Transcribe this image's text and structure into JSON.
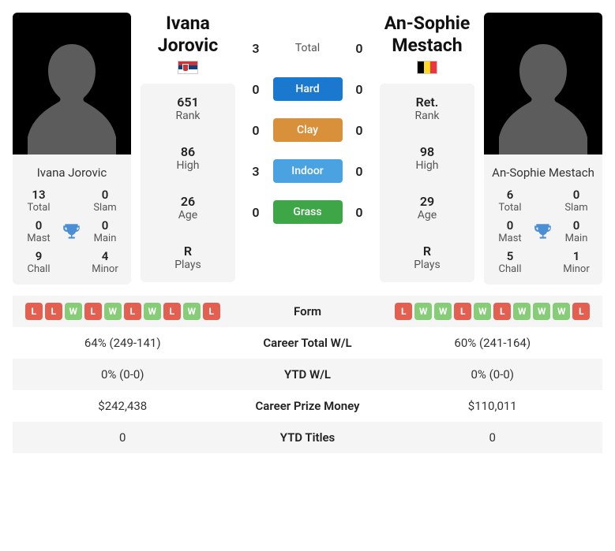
{
  "colors": {
    "hard": "#1a78cf",
    "clay": "#d8903a",
    "indoor": "#4aa3e0",
    "grass": "#3fa648",
    "trophy": "#4a8fd6",
    "silhouette": "#5c5c5c",
    "row_alt": "#f5f5f5"
  },
  "player1": {
    "name": "Ivana Jorovic",
    "flag": "serbia",
    "titles": {
      "total": {
        "val": "13",
        "lbl": "Total"
      },
      "slam": {
        "val": "0",
        "lbl": "Slam"
      },
      "mast": {
        "val": "0",
        "lbl": "Mast"
      },
      "main": {
        "val": "0",
        "lbl": "Main"
      },
      "chall": {
        "val": "9",
        "lbl": "Chall"
      },
      "minor": {
        "val": "4",
        "lbl": "Minor"
      }
    },
    "stats": {
      "rank": {
        "val": "651",
        "lbl": "Rank"
      },
      "high": {
        "val": "86",
        "lbl": "High"
      },
      "age": {
        "val": "26",
        "lbl": "Age"
      },
      "plays": {
        "val": "R",
        "lbl": "Plays"
      }
    },
    "form": [
      "L",
      "L",
      "W",
      "L",
      "W",
      "L",
      "W",
      "L",
      "W",
      "L"
    ],
    "career_wl": "64% (249-141)",
    "ytd_wl": "0% (0-0)",
    "prize": "$242,438",
    "ytd_titles": "0"
  },
  "player2": {
    "name": "An-Sophie Mestach",
    "flag": "belgium",
    "titles": {
      "total": {
        "val": "6",
        "lbl": "Total"
      },
      "slam": {
        "val": "0",
        "lbl": "Slam"
      },
      "mast": {
        "val": "0",
        "lbl": "Mast"
      },
      "main": {
        "val": "0",
        "lbl": "Main"
      },
      "chall": {
        "val": "5",
        "lbl": "Chall"
      },
      "minor": {
        "val": "1",
        "lbl": "Minor"
      }
    },
    "stats": {
      "rank": {
        "val": "Ret.",
        "lbl": "Rank"
      },
      "high": {
        "val": "98",
        "lbl": "High"
      },
      "age": {
        "val": "29",
        "lbl": "Age"
      },
      "plays": {
        "val": "R",
        "lbl": "Plays"
      }
    },
    "form": [
      "L",
      "W",
      "W",
      "L",
      "W",
      "L",
      "W",
      "W",
      "W",
      "L"
    ],
    "career_wl": "60% (241-164)",
    "ytd_wl": "0% (0-0)",
    "prize": "$110,011",
    "ytd_titles": "0"
  },
  "h2h": {
    "total": {
      "label": "Total",
      "p1": "3",
      "p2": "0"
    },
    "hard": {
      "label": "Hard",
      "p1": "0",
      "p2": "0"
    },
    "clay": {
      "label": "Clay",
      "p1": "0",
      "p2": "0"
    },
    "indoor": {
      "label": "Indoor",
      "p1": "3",
      "p2": "0"
    },
    "grass": {
      "label": "Grass",
      "p1": "0",
      "p2": "0"
    }
  },
  "compare_labels": {
    "form": "Form",
    "career_wl": "Career Total W/L",
    "ytd_wl": "YTD W/L",
    "prize": "Career Prize Money",
    "ytd_titles": "YTD Titles"
  }
}
